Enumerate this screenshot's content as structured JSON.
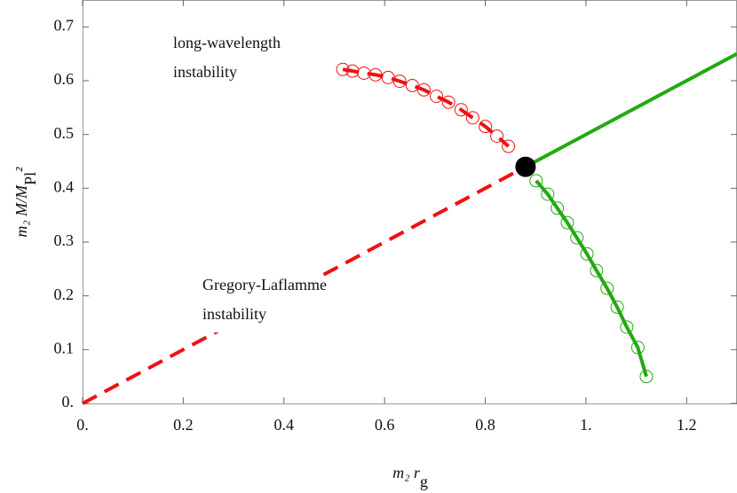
{
  "chart_data": {
    "type": "line",
    "x_label": "m₂ r_g",
    "y_label": "m₂ M/M_Pl²",
    "annotations": [
      [
        "long-wavelength",
        "instability"
      ],
      [
        "Gregory-Laflamme",
        "instability"
      ]
    ],
    "xlim": [
      0,
      1.3
    ],
    "ylim": [
      0,
      0.75
    ],
    "xticks": [
      {
        "value": 0,
        "label": "0."
      },
      0.2,
      0.4,
      0.6,
      0.8,
      {
        "value": 1,
        "label": "1."
      },
      1.2
    ],
    "yticks": [
      {
        "value": 0,
        "label": "0."
      },
      0.1,
      0.2,
      0.3,
      0.4,
      0.5,
      0.6,
      0.7
    ],
    "series": [
      {
        "color": "#ee1111",
        "line": "dashed",
        "x": [
          0,
          0.88
        ],
        "values": [
          0,
          0.44
        ]
      },
      {
        "color": "#22aa11",
        "line": "solid",
        "x": [
          0.88,
          1.3
        ],
        "values": [
          0.44,
          0.65
        ]
      },
      {
        "color": "#ee1111",
        "line": "dashed",
        "marker": "open-circle",
        "x": [
          0.517,
          0.536,
          0.559,
          0.582,
          0.607,
          0.63,
          0.655,
          0.678,
          0.703,
          0.727,
          0.752,
          0.775,
          0.8,
          0.823,
          0.846
        ],
        "values": [
          0.621,
          0.618,
          0.614,
          0.611,
          0.606,
          0.599,
          0.591,
          0.583,
          0.571,
          0.56,
          0.546,
          0.531,
          0.515,
          0.497,
          0.478
        ]
      },
      {
        "color": "#22aa11",
        "line": "solid",
        "marker": "open-circle",
        "x": [
          0.901,
          0.924,
          0.943,
          0.963,
          0.982,
          1.002,
          1.021,
          1.042,
          1.062,
          1.081,
          1.103,
          1.12
        ],
        "values": [
          0.414,
          0.389,
          0.363,
          0.336,
          0.308,
          0.278,
          0.247,
          0.214,
          0.179,
          0.142,
          0.104,
          0.05
        ]
      },
      {
        "color": "#000000",
        "marker": "filled-circle",
        "x": [
          0.88
        ],
        "values": [
          0.44
        ]
      }
    ]
  }
}
